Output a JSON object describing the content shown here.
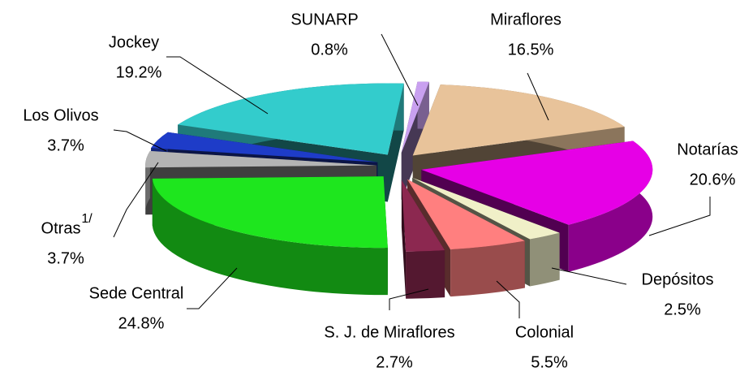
{
  "chart_data": {
    "type": "pie",
    "categories": [
      "SUNARP",
      "Miraflores",
      "Notarías",
      "Depósitos",
      "Colonial",
      "S. J. de Miraflores",
      "Sede Central",
      "Otras",
      "Los Olivos",
      "Jockey"
    ],
    "values": [
      0.8,
      16.5,
      20.6,
      2.5,
      5.5,
      2.7,
      24.8,
      3.7,
      3.7,
      19.2
    ],
    "value_labels": [
      "0.8%",
      "16.5%",
      "20.6%",
      "2.5%",
      "5.5%",
      "2.7%",
      "24.8%",
      "3.7%",
      "3.7%",
      "19.2%"
    ],
    "colors": [
      "#c9a0f0",
      "#e8c39a",
      "#e600e6",
      "#f0f0c8",
      "#ff7f7f",
      "#8c2850",
      "#1ee61e",
      "#b4b4b4",
      "#1e3cc8",
      "#33cccc"
    ],
    "annotation": "1/"
  }
}
